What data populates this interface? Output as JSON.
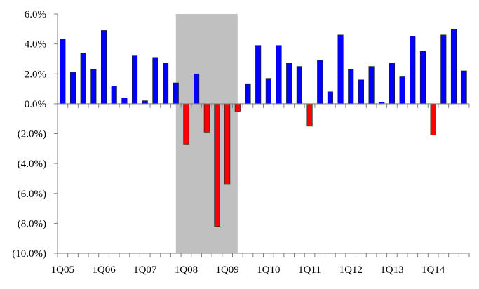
{
  "chart_data": {
    "type": "bar",
    "title": "",
    "xlabel": "",
    "ylabel": "",
    "ylim": [
      -10,
      6
    ],
    "y_ticks": [
      6,
      4,
      2,
      0,
      -2,
      -4,
      -6,
      -8,
      -10
    ],
    "y_tick_labels": [
      "6.0%",
      "4.0%",
      "2.0%",
      "0.0%",
      "(2.0%)",
      "(4.0%)",
      "(6.0%)",
      "(8.0%)",
      "(10.0%)"
    ],
    "x_tick_labels": [
      {
        "label": "1Q05",
        "index": 0
      },
      {
        "label": "1Q06",
        "index": 4
      },
      {
        "label": "1Q07",
        "index": 8
      },
      {
        "label": "1Q08",
        "index": 12
      },
      {
        "label": "1Q09",
        "index": 16
      },
      {
        "label": "1Q10",
        "index": 20
      },
      {
        "label": "1Q11",
        "index": 24
      },
      {
        "label": "1Q12",
        "index": 28
      },
      {
        "label": "1Q13",
        "index": 32
      },
      {
        "label": "1Q14",
        "index": 36
      }
    ],
    "categories": [
      "1Q05",
      "2Q05",
      "3Q05",
      "4Q05",
      "1Q06",
      "2Q06",
      "3Q06",
      "4Q06",
      "1Q07",
      "2Q07",
      "3Q07",
      "4Q07",
      "1Q08",
      "2Q08",
      "3Q08",
      "4Q08",
      "1Q09",
      "2Q09",
      "3Q09",
      "4Q09",
      "1Q10",
      "2Q10",
      "3Q10",
      "4Q10",
      "1Q11",
      "2Q11",
      "3Q11",
      "4Q11",
      "1Q12",
      "2Q12",
      "3Q12",
      "4Q12",
      "1Q13",
      "2Q13",
      "3Q13",
      "4Q13",
      "1Q14",
      "2Q14",
      "3Q14",
      "4Q14"
    ],
    "values": [
      4.3,
      2.1,
      3.4,
      2.3,
      4.9,
      1.2,
      0.4,
      3.2,
      0.2,
      3.1,
      2.7,
      1.4,
      -2.7,
      2.0,
      -1.9,
      -8.2,
      -5.4,
      -0.5,
      1.3,
      3.9,
      1.7,
      3.9,
      2.7,
      2.5,
      -1.5,
      2.9,
      0.8,
      4.6,
      2.3,
      1.6,
      2.5,
      0.1,
      2.7,
      1.8,
      4.5,
      3.5,
      -2.1,
      4.6,
      5.0,
      2.2
    ],
    "recession_band": {
      "start_index": 11,
      "end_index": 17
    },
    "colors": {
      "positive": "#0000ff",
      "negative": "#ff0000",
      "recession": "#c0c0c0",
      "axis": "#7f7f7f",
      "text": "#000000"
    },
    "grid": false,
    "legend": "none"
  }
}
